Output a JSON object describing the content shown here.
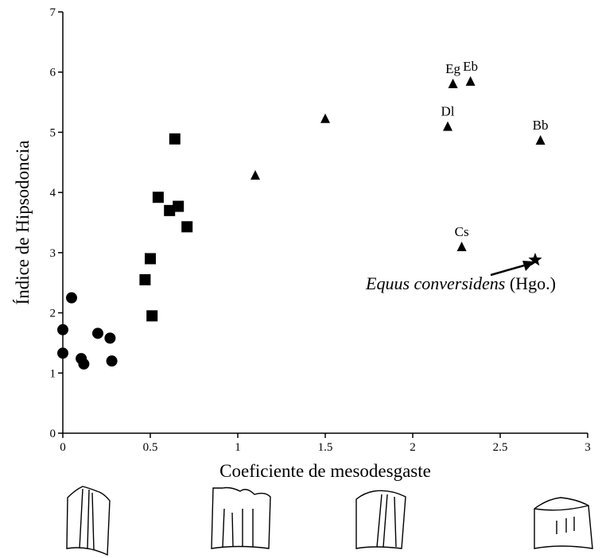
{
  "chart_data": {
    "type": "scatter",
    "x_label": "Coeficiente de mesodesgaste",
    "y_label": "Índice de Hipsodoncia",
    "xlim": [
      0,
      3
    ],
    "ylim": [
      0,
      7
    ],
    "xticks": [
      0,
      0.5,
      1,
      1.5,
      2,
      2.5,
      3
    ],
    "yticks": [
      0,
      1,
      2,
      3,
      4,
      5,
      6,
      7
    ],
    "color": "#000000",
    "series": [
      {
        "marker": "circle",
        "x": [
          0,
          0,
          0.05,
          0.105,
          0.12,
          0.2,
          0.27,
          0.28
        ],
        "values": [
          1.72,
          1.33,
          2.25,
          1.24,
          1.15,
          1.66,
          1.58,
          1.2
        ]
      },
      {
        "marker": "square",
        "x": [
          0.47,
          0.5,
          0.51,
          0.545,
          0.61,
          0.66,
          0.71,
          0.64
        ],
        "values": [
          2.55,
          2.9,
          1.95,
          3.92,
          3.7,
          3.77,
          3.43,
          4.89
        ]
      },
      {
        "marker": "triangle",
        "x": [
          1.1,
          1.5,
          2.2,
          2.23,
          2.33,
          2.73,
          2.28
        ],
        "values": [
          4.28,
          5.22,
          5.09,
          5.8,
          5.84,
          4.86,
          3.09
        ],
        "labels": [
          null,
          null,
          "Dl",
          "Eg",
          "Eb",
          "Bb",
          "Cs"
        ]
      },
      {
        "marker": "star",
        "x": [
          2.7
        ],
        "values": [
          2.88
        ]
      }
    ],
    "annotation": {
      "text": "Equus conversidens",
      "suffix": "(Hgo.)"
    }
  }
}
